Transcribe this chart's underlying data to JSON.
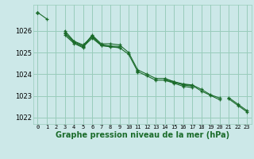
{
  "bg_color": "#cce8e8",
  "grid_color": "#99ccbb",
  "line_color": "#1a6b2a",
  "marker_color": "#1a6b2a",
  "xlabel": "Graphe pression niveau de la mer (hPa)",
  "xlabel_fontsize": 7,
  "xlim": [
    -0.5,
    23.5
  ],
  "ylim": [
    1021.7,
    1027.2
  ],
  "yticks": [
    1022,
    1023,
    1024,
    1025,
    1026
  ],
  "xticks": [
    0,
    1,
    2,
    3,
    4,
    5,
    6,
    7,
    8,
    9,
    10,
    11,
    12,
    13,
    14,
    15,
    16,
    17,
    18,
    19,
    20,
    21,
    22,
    23
  ],
  "series": [
    [
      1026.85,
      1026.55,
      null,
      1025.9,
      1025.5,
      1025.3,
      1025.8,
      1025.4,
      1025.4,
      1025.35,
      1025.0,
      1024.2,
      1024.0,
      1023.8,
      1023.8,
      1023.65,
      1023.55,
      1023.5,
      1023.3,
      1023.05,
      1022.9,
      null,
      null,
      null
    ],
    [
      1026.85,
      null,
      null,
      1025.8,
      1025.42,
      1025.22,
      1025.78,
      1025.32,
      1025.28,
      1025.22,
      1024.92,
      1024.12,
      1023.92,
      1023.72,
      1023.72,
      1023.62,
      1023.52,
      1023.48,
      1023.22,
      1023.02,
      1022.82,
      null,
      null,
      null
    ],
    [
      1026.85,
      null,
      null,
      1026.0,
      1025.52,
      1025.35,
      1025.72,
      1025.36,
      1025.3,
      1025.28,
      null,
      1024.15,
      null,
      null,
      1023.78,
      1023.65,
      1023.5,
      1023.45,
      null,
      null,
      null,
      1022.92,
      1022.62,
      1022.32
    ],
    [
      1026.85,
      null,
      null,
      1025.88,
      1025.46,
      1025.26,
      1025.66,
      1025.32,
      1025.26,
      1025.22,
      null,
      1024.08,
      null,
      null,
      1023.72,
      1023.58,
      1023.44,
      1023.38,
      null,
      null,
      null,
      1022.86,
      1022.56,
      1022.26
    ]
  ]
}
